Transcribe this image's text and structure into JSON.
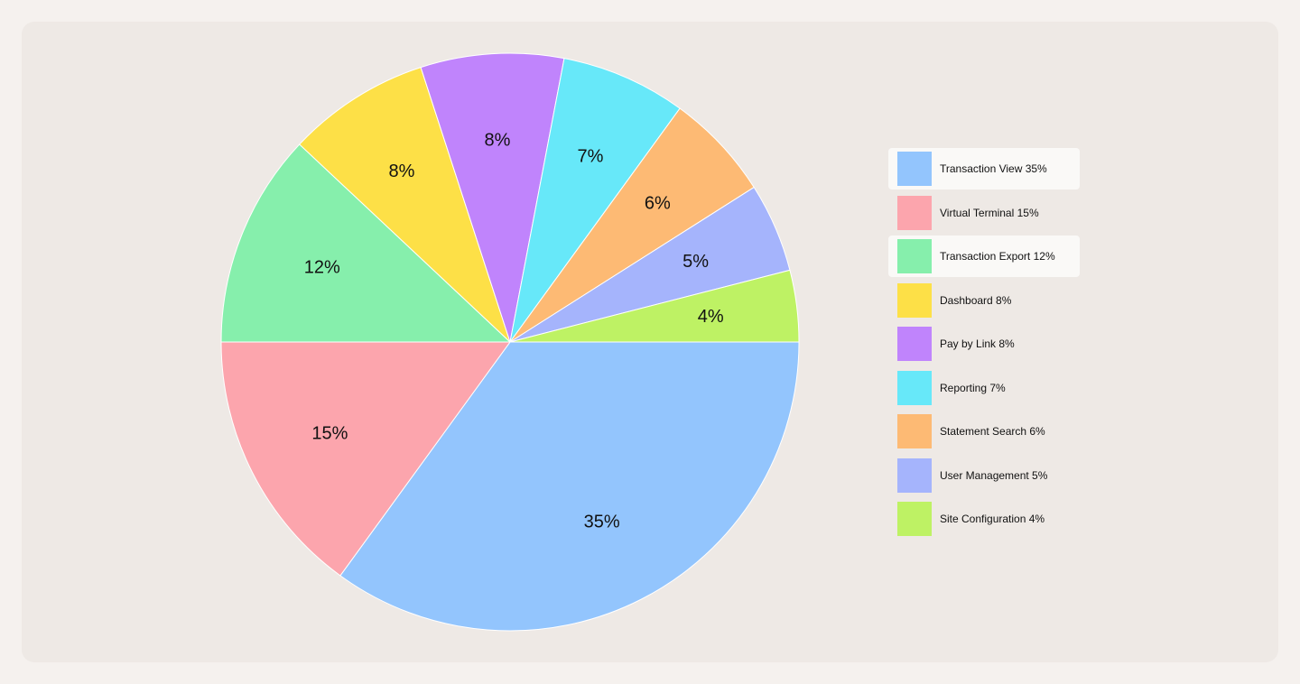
{
  "chart_data": {
    "type": "pie",
    "categories": [
      "Transaction View",
      "Virtual Terminal",
      "Transaction Export",
      "Dashboard",
      "Pay by Link",
      "Reporting",
      "Statement Search",
      "User Management",
      "Site Configuration"
    ],
    "values": [
      35,
      15,
      12,
      8,
      8,
      7,
      6,
      5,
      4
    ],
    "slice_labels": [
      "35%",
      "15%",
      "12%",
      "8%",
      "8%",
      "7%",
      "6%",
      "5%",
      "4%"
    ],
    "colors": [
      "#93c5fd",
      "#fca5ad",
      "#86efac",
      "#fde047",
      "#c084fc",
      "#67e8f9",
      "#fdba74",
      "#a5b4fc",
      "#bef264"
    ],
    "legend": {
      "placement": "right",
      "items": [
        {
          "label": "Transaction View 35%",
          "highlighted": true
        },
        {
          "label": "Virtual Terminal 15%",
          "highlighted": false
        },
        {
          "label": "Transaction Export 12%",
          "highlighted": true
        },
        {
          "label": "Dashboard 8%",
          "highlighted": false
        },
        {
          "label": "Pay by Link 8%",
          "highlighted": false
        },
        {
          "label": "Reporting 7%",
          "highlighted": false
        },
        {
          "label": "Statement Search 6%",
          "highlighted": false
        },
        {
          "label": "User Management 5%",
          "highlighted": false
        },
        {
          "label": "Site Configuration 4%",
          "highlighted": false
        }
      ]
    }
  }
}
